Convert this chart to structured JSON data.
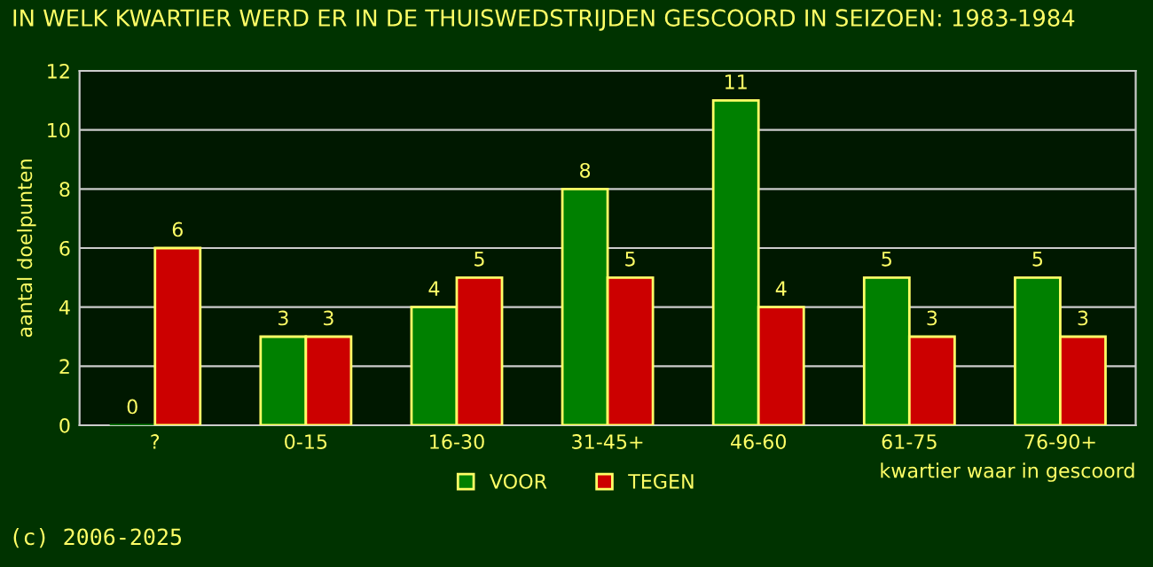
{
  "chart_data": {
    "type": "bar",
    "title": "IN WELK KWARTIER WERD ER IN DE THUISWEDSTRIJDEN GESCOORD IN SEIZOEN: 1983-1984",
    "xlabel": "kwartier waar in gescoord",
    "ylabel": "aantal doelpunten",
    "categories": [
      "?",
      "0-15",
      "16-30",
      "31-45+",
      "46-60",
      "61-75",
      "76-90+"
    ],
    "series": [
      {
        "name": "VOOR",
        "color": "#008000",
        "values": [
          0,
          3,
          4,
          8,
          11,
          5,
          5
        ]
      },
      {
        "name": "TEGEN",
        "color": "#cc0000",
        "values": [
          6,
          3,
          5,
          5,
          4,
          3,
          3
        ]
      }
    ],
    "ylim": [
      0,
      12
    ],
    "yticks": [
      0,
      2,
      4,
      6,
      8,
      10,
      12
    ],
    "grid": "y",
    "legend": "bottom",
    "data_labels": true,
    "annotations": [
      "(c) 2006-2025"
    ]
  }
}
